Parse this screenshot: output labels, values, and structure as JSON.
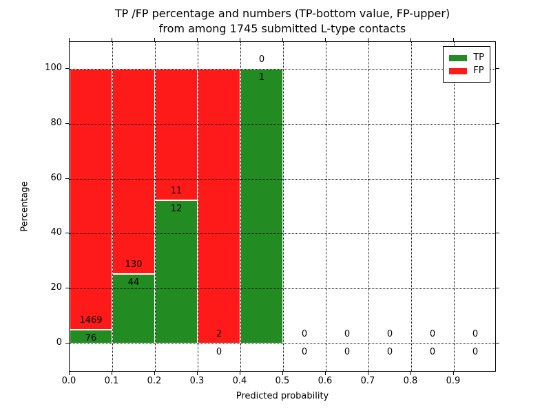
{
  "chart_data": {
    "type": "bar",
    "stacked": true,
    "title_line1": "TP /FP percentage and numbers (TP-bottom value, FP-upper)",
    "title_line2": "from among 1745 submitted L-type contacts",
    "xlabel": "Predicted probability",
    "ylabel": "Percentage",
    "total_submitted": 1745,
    "xlim": [
      0.0,
      1.0
    ],
    "ylim": [
      -10.5,
      109.8
    ],
    "grid": "dotted",
    "legend_position": "upper right",
    "x_tick_labels": [
      "0.0",
      "0.1",
      "0.2",
      "0.3",
      "0.4",
      "0.5",
      "0.6",
      "0.7",
      "0.8",
      "0.9"
    ],
    "y_ticks": [
      0,
      20,
      40,
      60,
      80,
      100
    ],
    "y_tick_labels": [
      "0",
      "20",
      "40",
      "60",
      "80",
      "100"
    ],
    "bin_width": 0.1,
    "bin_starts": [
      0.0,
      0.1,
      0.2,
      0.3,
      0.4,
      0.5,
      0.6,
      0.7,
      0.8,
      0.9
    ],
    "series": [
      {
        "name": "TP",
        "color": "#228b22",
        "counts": [
          76,
          44,
          12,
          0,
          1,
          0,
          0,
          0,
          0,
          0
        ]
      },
      {
        "name": "FP",
        "color": "#ff1a1a",
        "counts": [
          1469,
          130,
          11,
          2,
          0,
          0,
          0,
          0,
          0,
          0
        ]
      }
    ],
    "legend": [
      {
        "label": "TP",
        "color": "#228b22"
      },
      {
        "label": "FP",
        "color": "#ff1a1a"
      }
    ],
    "colors": {
      "axis": "#000000",
      "background": "#ffffff"
    }
  }
}
